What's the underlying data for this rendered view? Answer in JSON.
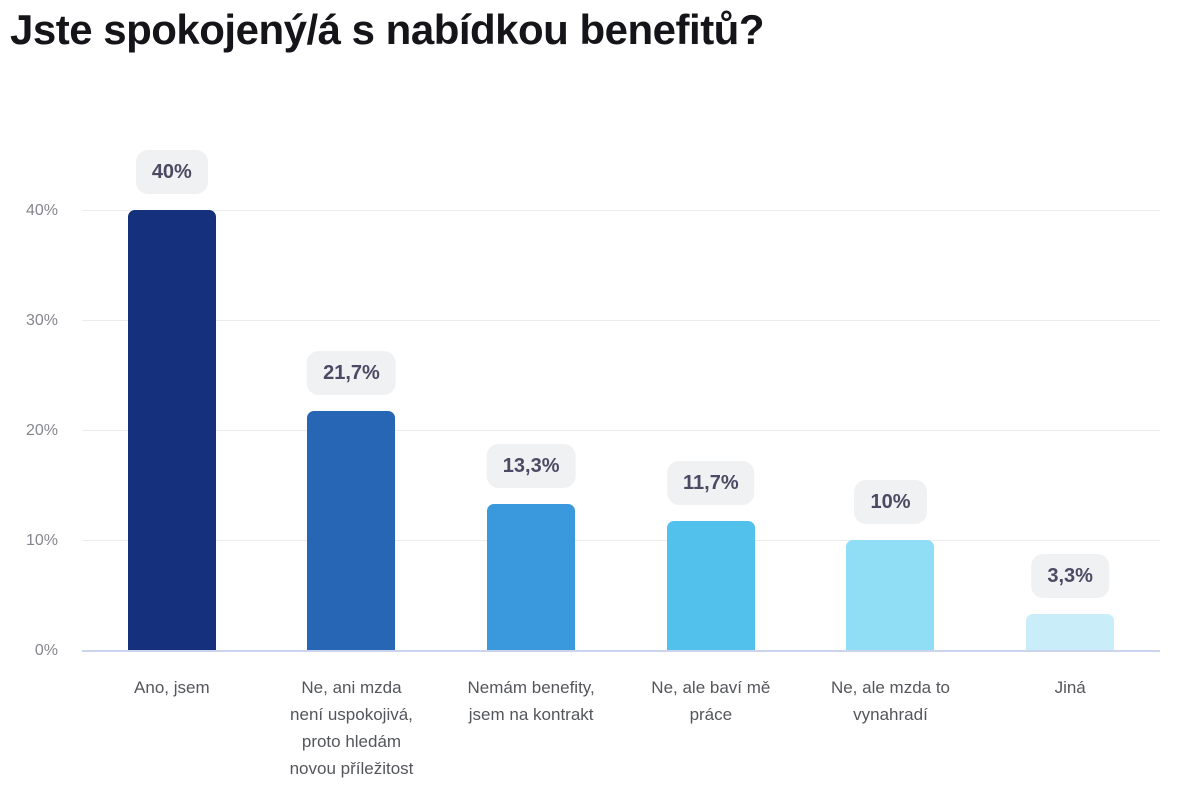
{
  "title": "Jste spokojený/á s nabídkou benefitů?",
  "chart_data": {
    "type": "bar",
    "title": "Jste spokojený/á s nabídkou benefitů?",
    "categories": [
      "Ano, jsem",
      "Ne, ani mzda není uspokojivá, proto hledám novou příležitost",
      "Nemám benefity, jsem na kontrakt",
      "Ne, ale baví mě práce",
      "Ne, ale mzda to vynahradí",
      "Jiná"
    ],
    "category_display_lines": [
      [
        "Ano, jsem"
      ],
      [
        "Ne, ani mzda",
        "není uspokojivá,",
        "proto hledám",
        "novou příležitost"
      ],
      [
        "Nemám benefity,",
        "jsem na kontrakt"
      ],
      [
        "Ne, ale baví mě",
        "práce"
      ],
      [
        "Ne, ale mzda to",
        "vynahradí"
      ],
      [
        "Jiná"
      ]
    ],
    "values": [
      40,
      21.7,
      13.3,
      11.7,
      10,
      3.3
    ],
    "value_labels": [
      "40%",
      "21,7%",
      "13,3%",
      "11,7%",
      "10%",
      "3,3%"
    ],
    "bar_colors": [
      "#15317e",
      "#2666b5",
      "#3a99dc",
      "#52c1ec",
      "#8fdef5",
      "#c9eefa"
    ],
    "xlabel": "",
    "ylabel": "",
    "unit": "%",
    "ylim": [
      0,
      44
    ],
    "yticks": [
      0,
      10,
      20,
      30,
      40
    ],
    "ytick_labels": [
      "0%",
      "10%",
      "20%",
      "30%",
      "40%"
    ],
    "grid": "horizontal-only",
    "legend": "none"
  },
  "style": {
    "badge_bg": "#f0f1f2",
    "badge_text_color": "#4b4a64",
    "title_color": "#141419",
    "ytick_color": "#85868d",
    "category_label_color": "#54565b",
    "gridline_color": "#ebecee",
    "baseline_color": "#ccd3ec"
  }
}
